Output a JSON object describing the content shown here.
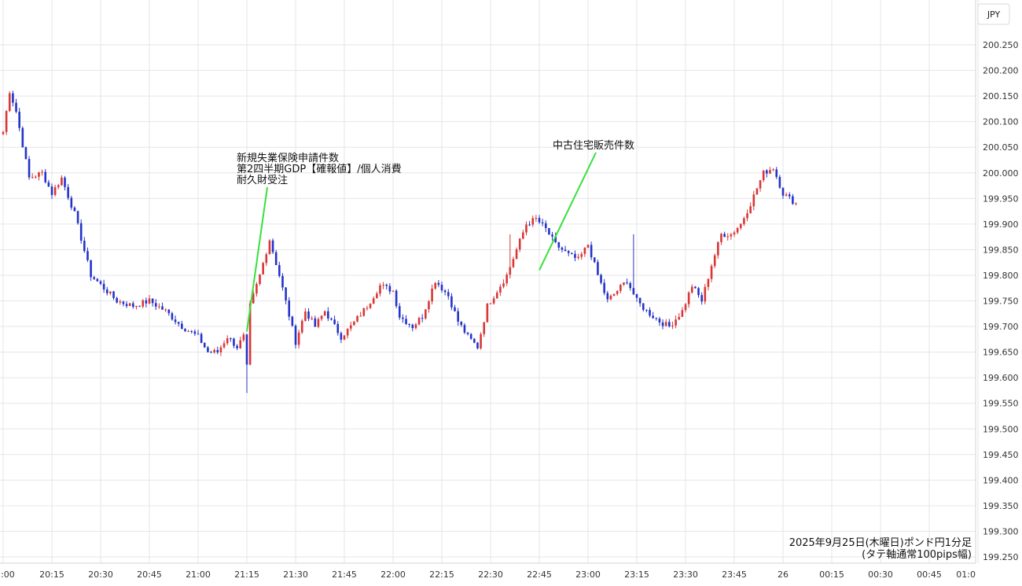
{
  "chart_data": {
    "type": "candlestick",
    "title": "",
    "currency_label": "JPY",
    "note_lines": [
      "2025年9月25日(木曜日)ポンド円1分足",
      "(タテ軸通常100pips幅)"
    ],
    "y_ticks": [
      "200.250",
      "200.200",
      "200.150",
      "200.100",
      "200.050",
      "200.000",
      "199.950",
      "199.900",
      "199.850",
      "199.800",
      "199.750",
      "199.700",
      "199.650",
      "199.600",
      "199.550",
      "199.500",
      "199.450",
      "199.400",
      "199.350",
      "199.300",
      "199.250"
    ],
    "x_ticks": [
      ":00",
      "20:15",
      "20:30",
      "20:45",
      "21:00",
      "21:15",
      "21:30",
      "21:45",
      "22:00",
      "22:15",
      "22:30",
      "22:45",
      "23:00",
      "23:15",
      "23:30",
      "23:45",
      "26",
      "00:15",
      "00:30",
      "00:45",
      "01:0"
    ],
    "ylim": [
      199.25,
      200.25
    ],
    "grid": true,
    "colors": {
      "up": "#d93636",
      "down": "#2433c8",
      "marker": "#37e03a",
      "grid": "#e4e6ea"
    },
    "annotations": [
      {
        "lines": [
          "新規失業保険申請件数",
          "第2四半期GDP【確報値】/個人消費",
          "耐久財受注"
        ],
        "time": "21:30",
        "price": 199.69
      },
      {
        "lines": [
          "中古住宅販売件数"
        ],
        "time": "23:00",
        "price": 199.81
      }
    ],
    "anchors": [
      [
        0,
        200.08
      ],
      [
        2,
        200.16
      ],
      [
        4,
        200.12
      ],
      [
        8,
        199.99
      ],
      [
        12,
        200.0
      ],
      [
        15,
        199.96
      ],
      [
        18,
        199.99
      ],
      [
        22,
        199.92
      ],
      [
        27,
        199.8
      ],
      [
        35,
        199.75
      ],
      [
        40,
        199.74
      ],
      [
        45,
        199.75
      ],
      [
        50,
        199.73
      ],
      [
        55,
        199.7
      ],
      [
        60,
        199.68
      ],
      [
        63,
        199.65
      ],
      [
        66,
        199.65
      ],
      [
        69,
        199.68
      ],
      [
        72,
        199.66
      ],
      [
        74,
        199.68
      ],
      [
        75,
        199.62
      ],
      [
        76,
        199.74
      ],
      [
        79,
        199.8
      ],
      [
        82,
        199.87
      ],
      [
        85,
        199.8
      ],
      [
        90,
        199.67
      ],
      [
        93,
        199.73
      ],
      [
        96,
        199.7
      ],
      [
        99,
        199.73
      ],
      [
        104,
        199.68
      ],
      [
        107,
        199.7
      ],
      [
        112,
        199.74
      ],
      [
        116,
        199.78
      ],
      [
        120,
        199.77
      ],
      [
        122,
        199.72
      ],
      [
        126,
        199.7
      ],
      [
        129,
        199.72
      ],
      [
        133,
        199.79
      ],
      [
        137,
        199.76
      ],
      [
        140,
        199.71
      ],
      [
        143,
        199.68
      ],
      [
        146,
        199.66
      ],
      [
        149,
        199.74
      ],
      [
        152,
        199.77
      ],
      [
        155,
        199.8
      ],
      [
        158,
        199.85
      ],
      [
        161,
        199.9
      ],
      [
        164,
        199.91
      ],
      [
        167,
        199.89
      ],
      [
        170,
        199.86
      ],
      [
        174,
        199.84
      ],
      [
        177,
        199.83
      ],
      [
        180,
        199.86
      ],
      [
        183,
        199.8
      ],
      [
        186,
        199.75
      ],
      [
        189,
        199.77
      ],
      [
        192,
        199.79
      ],
      [
        195,
        199.75
      ],
      [
        198,
        199.73
      ],
      [
        202,
        199.71
      ],
      [
        205,
        199.7
      ],
      [
        209,
        199.73
      ],
      [
        212,
        199.78
      ],
      [
        215,
        199.75
      ],
      [
        218,
        199.82
      ],
      [
        221,
        199.88
      ],
      [
        224,
        199.88
      ],
      [
        227,
        199.9
      ],
      [
        230,
        199.94
      ],
      [
        234,
        200.0
      ],
      [
        237,
        200.01
      ],
      [
        240,
        199.96
      ],
      [
        244,
        199.94
      ]
    ]
  }
}
